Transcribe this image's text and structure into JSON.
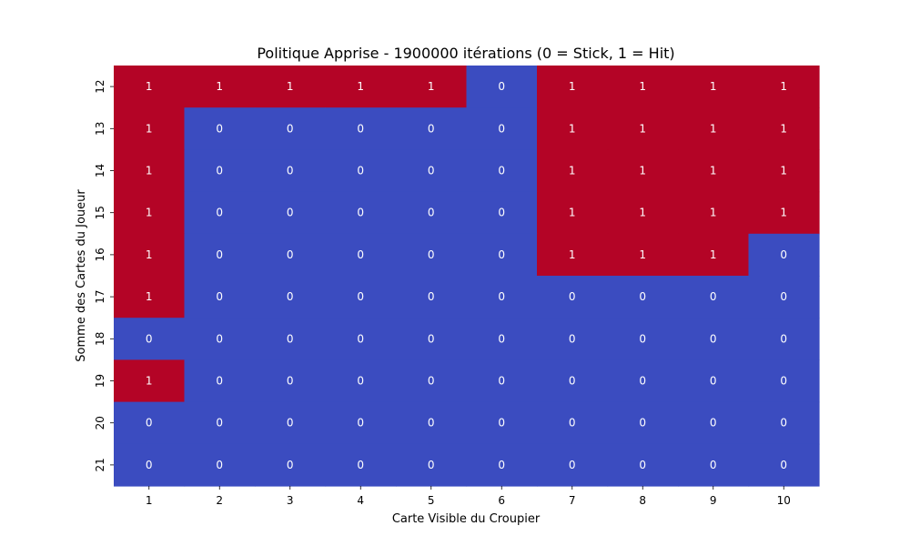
{
  "chart_data": {
    "type": "heatmap",
    "title": "Politique Apprise - 1900000 itérations (0 = Stick, 1 = Hit)",
    "xlabel": "Carte Visible du Croupier",
    "ylabel": "Somme des Cartes du Joueur",
    "x_categories": [
      "1",
      "2",
      "3",
      "4",
      "5",
      "6",
      "7",
      "8",
      "9",
      "10"
    ],
    "y_categories": [
      "12",
      "13",
      "14",
      "15",
      "16",
      "17",
      "18",
      "19",
      "20",
      "21"
    ],
    "values": [
      [
        1,
        1,
        1,
        1,
        1,
        0,
        1,
        1,
        1,
        1
      ],
      [
        1,
        0,
        0,
        0,
        0,
        0,
        1,
        1,
        1,
        1
      ],
      [
        1,
        0,
        0,
        0,
        0,
        0,
        1,
        1,
        1,
        1
      ],
      [
        1,
        0,
        0,
        0,
        0,
        0,
        1,
        1,
        1,
        1
      ],
      [
        1,
        0,
        0,
        0,
        0,
        0,
        1,
        1,
        1,
        0
      ],
      [
        1,
        0,
        0,
        0,
        0,
        0,
        0,
        0,
        0,
        0
      ],
      [
        0,
        0,
        0,
        0,
        0,
        0,
        0,
        0,
        0,
        0
      ],
      [
        1,
        0,
        0,
        0,
        0,
        0,
        0,
        0,
        0,
        0
      ],
      [
        0,
        0,
        0,
        0,
        0,
        0,
        0,
        0,
        0,
        0
      ],
      [
        0,
        0,
        0,
        0,
        0,
        0,
        0,
        0,
        0,
        0
      ]
    ],
    "colors": {
      "0": "#3b4cc0",
      "1": "#b40426"
    },
    "annotations": true,
    "grid": false,
    "legend": "none"
  }
}
